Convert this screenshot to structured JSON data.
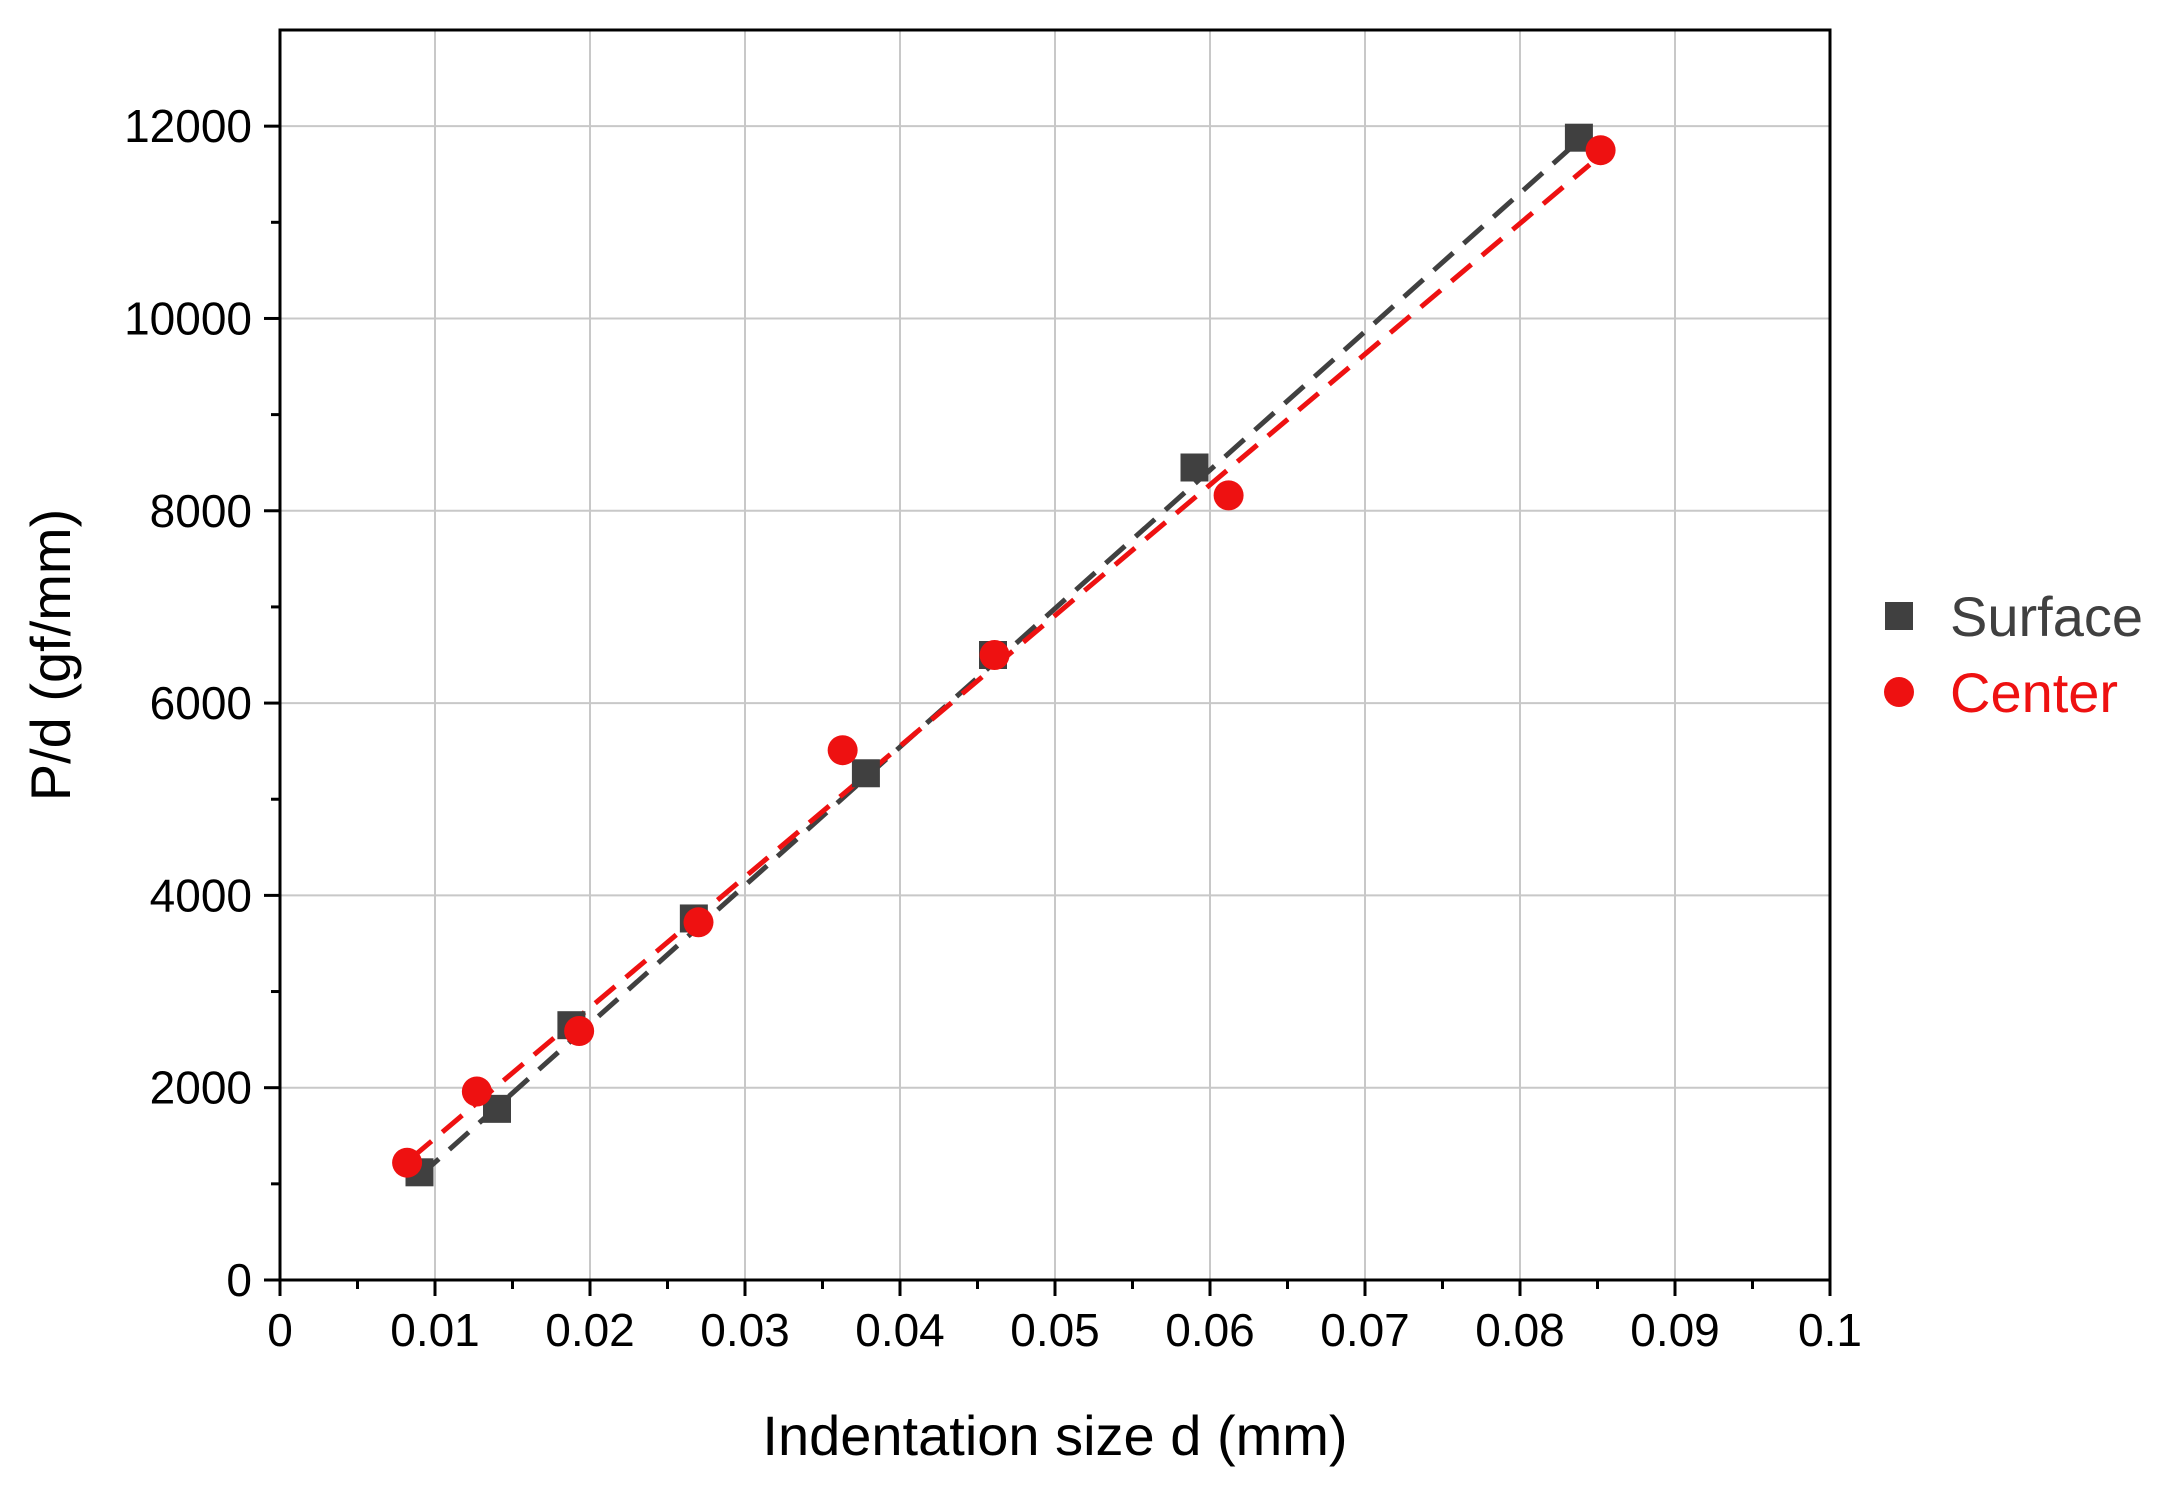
{
  "chart_data": {
    "type": "scatter",
    "title": "",
    "xlabel": "Indentation size d (mm)",
    "ylabel": "P/d (gf/mm)",
    "xlim": [
      0,
      0.1
    ],
    "ylim": [
      0,
      13000
    ],
    "x_ticks": [
      0,
      0.01,
      0.02,
      0.03,
      0.04,
      0.05,
      0.06,
      0.07,
      0.08,
      0.09,
      0.1
    ],
    "x_tick_labels": [
      "0",
      "0.01",
      "0.02",
      "0.03",
      "0.04",
      "0.05",
      "0.06",
      "0.07",
      "0.08",
      "0.09",
      "0.1"
    ],
    "y_ticks": [
      0,
      2000,
      4000,
      6000,
      8000,
      10000,
      12000
    ],
    "y_tick_labels": [
      "0",
      "2000",
      "4000",
      "6000",
      "8000",
      "10000",
      "12000"
    ],
    "grid": true,
    "legend": "right",
    "series": [
      {
        "name": "Surface",
        "color": "#404040",
        "marker": "square",
        "x": [
          0.009,
          0.014,
          0.0188,
          0.0267,
          0.0378,
          0.046,
          0.059,
          0.0838
        ],
        "y": [
          1120,
          1780,
          2650,
          3760,
          5270,
          6500,
          8450,
          11880
        ],
        "fit": {
          "x": [
            0.009,
            0.0838
          ],
          "y": [
            1080,
            11850
          ],
          "style": "dashed"
        }
      },
      {
        "name": "Center",
        "color": "#ee1111",
        "marker": "circle",
        "x": [
          0.0082,
          0.0127,
          0.0193,
          0.027,
          0.0363,
          0.0461,
          0.0612,
          0.0852
        ],
        "y": [
          1220,
          1960,
          2590,
          3720,
          5510,
          6500,
          8160,
          11750
        ],
        "fit": {
          "x": [
            0.0085,
            0.0845
          ],
          "y": [
            1270,
            11600
          ],
          "style": "dashed"
        }
      }
    ]
  }
}
